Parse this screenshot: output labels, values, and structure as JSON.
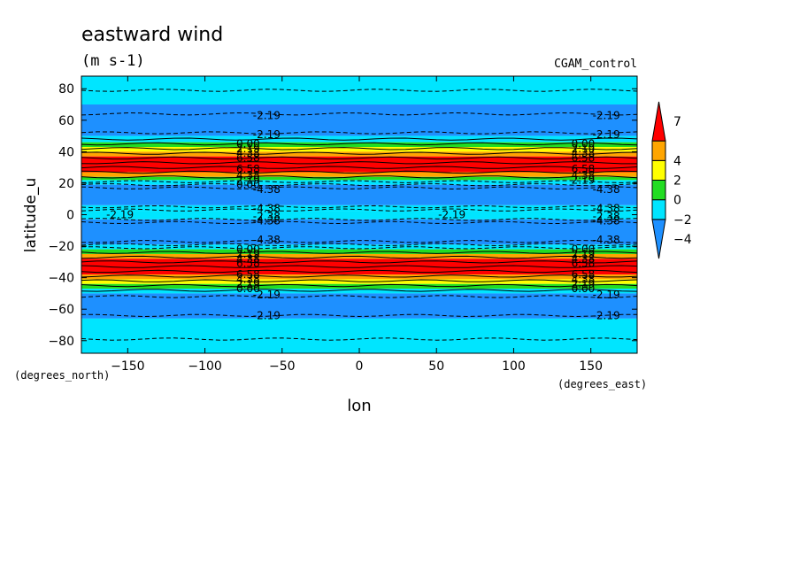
{
  "chart_data": {
    "type": "heatmap",
    "title": "eastward wind",
    "subtitle": "(m s-1)",
    "source_label": "CGAM_control",
    "xlabel": "lon",
    "ylabel": "latitude_u",
    "x_units": "(degrees_east)",
    "y_units": "(degrees_north)",
    "xlim": [
      -180,
      180
    ],
    "ylim": [
      -88,
      88
    ],
    "x_ticks": [
      -150,
      -100,
      -50,
      0,
      50,
      100,
      150
    ],
    "y_ticks": [
      -80,
      -60,
      -40,
      -20,
      0,
      20,
      40,
      60,
      80
    ],
    "colorbar": {
      "levels": [
        -4,
        -2,
        0,
        2,
        4,
        7
      ],
      "colors": [
        "#1e90ff",
        "#00e5ff",
        "#22dd22",
        "#ffff00",
        "#ffa500",
        "#ff0000"
      ]
    },
    "bands": [
      {
        "lat_min": 70,
        "lat_max": 88,
        "color": "#00e5ff"
      },
      {
        "lat_min": 50,
        "lat_max": 70,
        "color": "#1e90ff"
      },
      {
        "lat_min": 46,
        "lat_max": 50,
        "color": "#00e5ff"
      },
      {
        "lat_min": 43,
        "lat_max": 46,
        "color": "#22dd22"
      },
      {
        "lat_min": 40,
        "lat_max": 43,
        "color": "#ffff00"
      },
      {
        "lat_min": 37,
        "lat_max": 40,
        "color": "#ffa500"
      },
      {
        "lat_min": 27,
        "lat_max": 37,
        "color": "#ff0000"
      },
      {
        "lat_min": 24,
        "lat_max": 27,
        "color": "#ffa500"
      },
      {
        "lat_min": 22,
        "lat_max": 24,
        "color": "#22dd22"
      },
      {
        "lat_min": 19,
        "lat_max": 22,
        "color": "#00e5ff"
      },
      {
        "lat_min": 6,
        "lat_max": 19,
        "color": "#1e90ff"
      },
      {
        "lat_min": 2,
        "lat_max": 6,
        "color": "#00e5ff"
      },
      {
        "lat_min": -3,
        "lat_max": 2,
        "color": "#00e5ff"
      },
      {
        "lat_min": -19,
        "lat_max": -3,
        "color": "#1e90ff"
      },
      {
        "lat_min": -22,
        "lat_max": -19,
        "color": "#00e5ff"
      },
      {
        "lat_min": -25,
        "lat_max": -22,
        "color": "#22dd22"
      },
      {
        "lat_min": -28,
        "lat_max": -25,
        "color": "#ffa500"
      },
      {
        "lat_min": -38,
        "lat_max": -28,
        "color": "#ff0000"
      },
      {
        "lat_min": -41,
        "lat_max": -38,
        "color": "#ffa500"
      },
      {
        "lat_min": -44,
        "lat_max": -41,
        "color": "#ffff00"
      },
      {
        "lat_min": -47,
        "lat_max": -44,
        "color": "#22dd22"
      },
      {
        "lat_min": -50,
        "lat_max": -47,
        "color": "#00e5ff"
      },
      {
        "lat_min": -66,
        "lat_max": -50,
        "color": "#1e90ff"
      },
      {
        "lat_min": -88,
        "lat_max": -66,
        "color": "#00e5ff"
      }
    ],
    "contours": [
      {
        "lat": 79,
        "dashed": true
      },
      {
        "lat": 64,
        "dashed": true
      },
      {
        "lat": 52,
        "dashed": true
      },
      {
        "lat": 48,
        "dashed": false
      },
      {
        "lat": 45,
        "dashed": false
      },
      {
        "lat": 42,
        "dashed": false
      },
      {
        "lat": 39,
        "dashed": false
      },
      {
        "lat": 36,
        "dashed": false
      },
      {
        "lat": 33,
        "dashed": false
      },
      {
        "lat": 30,
        "dashed": false
      },
      {
        "lat": 27,
        "dashed": false
      },
      {
        "lat": 24,
        "dashed": false
      },
      {
        "lat": 21,
        "dashed": true
      },
      {
        "lat": 19,
        "dashed": true
      },
      {
        "lat": 17,
        "dashed": true
      },
      {
        "lat": 5,
        "dashed": true
      },
      {
        "lat": 3,
        "dashed": true
      },
      {
        "lat": -3,
        "dashed": true
      },
      {
        "lat": -5,
        "dashed": true
      },
      {
        "lat": -17,
        "dashed": true
      },
      {
        "lat": -19,
        "dashed": true
      },
      {
        "lat": -21,
        "dashed": true
      },
      {
        "lat": -24,
        "dashed": false
      },
      {
        "lat": -27,
        "dashed": false
      },
      {
        "lat": -30,
        "dashed": false
      },
      {
        "lat": -33,
        "dashed": false
      },
      {
        "lat": -36,
        "dashed": false
      },
      {
        "lat": -39,
        "dashed": false
      },
      {
        "lat": -42,
        "dashed": false
      },
      {
        "lat": -45,
        "dashed": false
      },
      {
        "lat": -48,
        "dashed": false
      },
      {
        "lat": -52,
        "dashed": true
      },
      {
        "lat": -64,
        "dashed": true
      },
      {
        "lat": -79,
        "dashed": true
      }
    ],
    "contour_labels": [
      {
        "lon": -60,
        "lat": 63,
        "text": "-2.19"
      },
      {
        "lon": 160,
        "lat": 63,
        "text": "-2.19"
      },
      {
        "lon": -60,
        "lat": 51,
        "text": "-2.19"
      },
      {
        "lon": 160,
        "lat": 51,
        "text": "-2.19"
      },
      {
        "lon": -72,
        "lat": 45,
        "text": "0.00"
      },
      {
        "lon": -72,
        "lat": 42,
        "text": "2.19"
      },
      {
        "lon": -72,
        "lat": 39,
        "text": "4.38"
      },
      {
        "lon": -72,
        "lat": 36,
        "text": "6.58"
      },
      {
        "lon": -72,
        "lat": 29,
        "text": "6.58"
      },
      {
        "lon": -72,
        "lat": 25,
        "text": "4.38"
      },
      {
        "lon": -72,
        "lat": 22,
        "text": "2.19"
      },
      {
        "lon": -72,
        "lat": 19,
        "text": "0.00"
      },
      {
        "lon": -60,
        "lat": 16,
        "text": "-4.38"
      },
      {
        "lon": 145,
        "lat": 45,
        "text": "0.00"
      },
      {
        "lon": 145,
        "lat": 42,
        "text": "2.19"
      },
      {
        "lon": 145,
        "lat": 39,
        "text": "4.38"
      },
      {
        "lon": 145,
        "lat": 36,
        "text": "6.58"
      },
      {
        "lon": 145,
        "lat": 29,
        "text": "6.58"
      },
      {
        "lon": 145,
        "lat": 25,
        "text": "4.38"
      },
      {
        "lon": 145,
        "lat": 22,
        "text": "2.19"
      },
      {
        "lon": 160,
        "lat": 16,
        "text": "-4.38"
      },
      {
        "lon": -60,
        "lat": 4,
        "text": "-4.38"
      },
      {
        "lon": 160,
        "lat": 4,
        "text": "-4.38"
      },
      {
        "lon": -155,
        "lat": 0,
        "text": "-2.19"
      },
      {
        "lon": -60,
        "lat": -1,
        "text": "-2.38"
      },
      {
        "lon": 60,
        "lat": 0,
        "text": "-2.19"
      },
      {
        "lon": 160,
        "lat": -1,
        "text": "-2.38"
      },
      {
        "lon": -60,
        "lat": -4,
        "text": "-4.38"
      },
      {
        "lon": 160,
        "lat": -4,
        "text": "-4.38"
      },
      {
        "lon": -60,
        "lat": -16,
        "text": "-4.38"
      },
      {
        "lon": 160,
        "lat": -16,
        "text": "-4.38"
      },
      {
        "lon": -72,
        "lat": -22,
        "text": "0.00"
      },
      {
        "lon": -72,
        "lat": -25,
        "text": "2.19"
      },
      {
        "lon": -72,
        "lat": -28,
        "text": "4.38"
      },
      {
        "lon": -72,
        "lat": -31,
        "text": "6.58"
      },
      {
        "lon": -72,
        "lat": -38,
        "text": "6.58"
      },
      {
        "lon": -72,
        "lat": -41,
        "text": "4.38"
      },
      {
        "lon": -72,
        "lat": -44,
        "text": "2.19"
      },
      {
        "lon": -72,
        "lat": -47,
        "text": "0.00"
      },
      {
        "lon": 145,
        "lat": -22,
        "text": "0.00"
      },
      {
        "lon": 145,
        "lat": -25,
        "text": "2.19"
      },
      {
        "lon": 145,
        "lat": -28,
        "text": "4.38"
      },
      {
        "lon": 145,
        "lat": -31,
        "text": "6.58"
      },
      {
        "lon": 145,
        "lat": -38,
        "text": "6.58"
      },
      {
        "lon": 145,
        "lat": -41,
        "text": "4.38"
      },
      {
        "lon": 145,
        "lat": -44,
        "text": "2.19"
      },
      {
        "lon": 145,
        "lat": -47,
        "text": "0.00"
      },
      {
        "lon": -60,
        "lat": -51,
        "text": "-2.19"
      },
      {
        "lon": 160,
        "lat": -51,
        "text": "-2.19"
      },
      {
        "lon": -60,
        "lat": -64,
        "text": "-2.19"
      },
      {
        "lon": 160,
        "lat": -64,
        "text": "-2.19"
      }
    ]
  }
}
